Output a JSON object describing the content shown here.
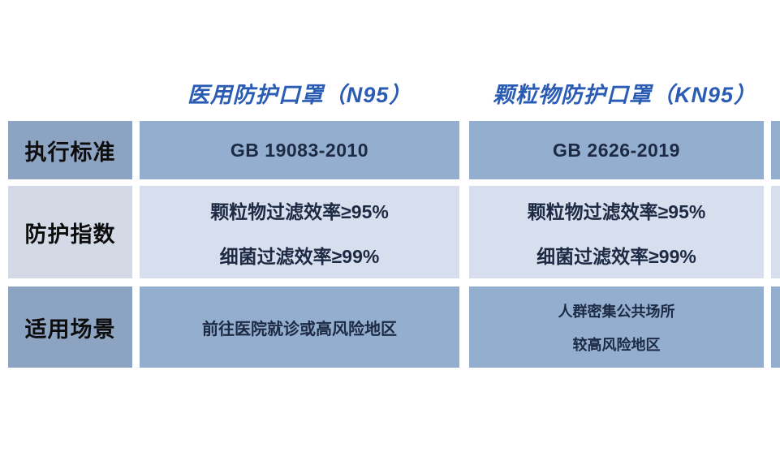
{
  "table": {
    "columns": [
      {
        "header": "医用防护口罩（N95）"
      },
      {
        "header": "颗粒物防护口罩（KN95）"
      },
      {
        "header": ""
      }
    ],
    "rows": [
      {
        "label": "执行标准",
        "n95": "GB 19083-2010",
        "kn95": "GB 2626-2019"
      },
      {
        "label": "防护指数",
        "n95_lines": [
          "颗粒物过滤效率≥95%",
          "细菌过滤效率≥99%"
        ],
        "kn95_lines": [
          "颗粒物过滤效率≥95%",
          "细菌过滤效率≥99%"
        ]
      },
      {
        "label": "适用场景",
        "n95": "前往医院就诊或高风险地区",
        "kn95_lines": [
          "人群密集公共场所",
          "较高风险地区"
        ]
      }
    ],
    "colors": {
      "header_text": "#2b5cb4",
      "cell_dark_bg": "#93aecf",
      "cell_light_bg": "#d7dfee",
      "label_dark_bg": "#8ca3c2",
      "label_light_bg": "#d3dae6",
      "cell_text": "#1d2a44",
      "label_text": "#0d0d0d"
    }
  }
}
